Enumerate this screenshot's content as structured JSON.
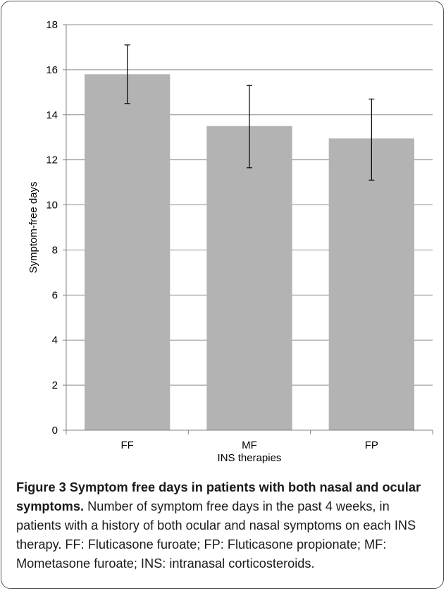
{
  "figure": {
    "caption_lead": "Figure 3 Symptom free days in patients with both nasal and ocular symptoms.",
    "caption_body": "Number of symptom free days in the past 4 weeks, in patients with a history of both ocular and nasal symptoms on each INS therapy. FF: Fluticasone furoate; FP: Fluticasone propionate; MF: Mometasone furoate; INS: intranasal corticosteroids."
  },
  "colors": {
    "bar": "#b3b3b3",
    "grid": "#8c8c8c",
    "axis": "#808080",
    "error_bar": "#000000"
  },
  "chart_data": {
    "type": "bar",
    "categories": [
      "FF",
      "MF",
      "FP"
    ],
    "values": [
      15.8,
      13.5,
      12.95
    ],
    "error_low": [
      14.5,
      11.65,
      11.1
    ],
    "error_high": [
      17.1,
      15.3,
      14.7
    ],
    "xlabel": "INS therapies",
    "ylabel": "Symptom-free days",
    "ylim": [
      0,
      18
    ],
    "yticks": [
      0,
      2,
      4,
      6,
      8,
      10,
      12,
      14,
      16,
      18
    ],
    "grid": true,
    "legend": "none"
  }
}
